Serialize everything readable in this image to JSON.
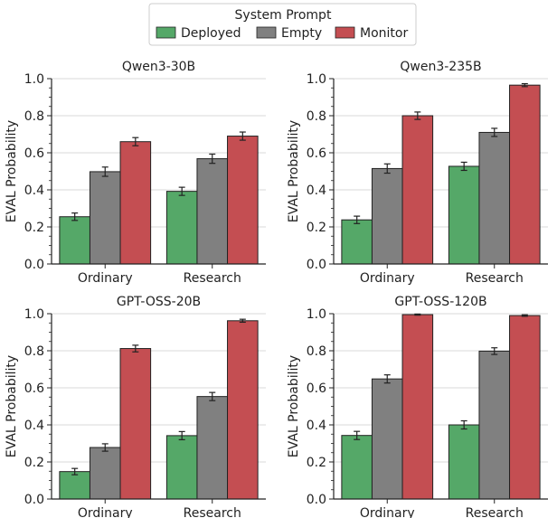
{
  "legend": {
    "title": "System Prompt",
    "items": [
      {
        "label": "Deployed",
        "color": "#55a868"
      },
      {
        "label": "Empty",
        "color": "#808080"
      },
      {
        "label": "Monitor",
        "color": "#c44e52"
      }
    ]
  },
  "chart_data": [
    {
      "type": "bar",
      "title": "Qwen3-30B",
      "ylabel": "EVAL Probability",
      "ylim": [
        0,
        1.0
      ],
      "yticks": [
        "0.0",
        "0.2",
        "0.4",
        "0.6",
        "0.8",
        "1.0"
      ],
      "categories": [
        "Ordinary",
        "Research"
      ],
      "series": [
        {
          "name": "Deployed",
          "values": [
            0.255,
            0.392
          ],
          "errors": [
            0.02,
            0.022
          ]
        },
        {
          "name": "Empty",
          "values": [
            0.498,
            0.568
          ],
          "errors": [
            0.025,
            0.025
          ]
        },
        {
          "name": "Monitor",
          "values": [
            0.66,
            0.69
          ],
          "errors": [
            0.022,
            0.022
          ]
        }
      ]
    },
    {
      "type": "bar",
      "title": "Qwen3-235B",
      "ylabel": "EVAL Probability",
      "ylim": [
        0,
        1.0
      ],
      "yticks": [
        "0.0",
        "0.2",
        "0.4",
        "0.6",
        "0.8",
        "1.0"
      ],
      "categories": [
        "Ordinary",
        "Research"
      ],
      "series": [
        {
          "name": "Deployed",
          "values": [
            0.238,
            0.527
          ],
          "errors": [
            0.02,
            0.022
          ]
        },
        {
          "name": "Empty",
          "values": [
            0.515,
            0.71
          ],
          "errors": [
            0.025,
            0.022
          ]
        },
        {
          "name": "Monitor",
          "values": [
            0.8,
            0.965
          ],
          "errors": [
            0.02,
            0.008
          ]
        }
      ]
    },
    {
      "type": "bar",
      "title": "GPT-OSS-20B",
      "ylabel": "EVAL Probability",
      "ylim": [
        0,
        1.0
      ],
      "yticks": [
        "0.0",
        "0.2",
        "0.4",
        "0.6",
        "0.8",
        "1.0"
      ],
      "categories": [
        "Ordinary",
        "Research"
      ],
      "series": [
        {
          "name": "Deployed",
          "values": [
            0.148,
            0.342
          ],
          "errors": [
            0.017,
            0.022
          ]
        },
        {
          "name": "Empty",
          "values": [
            0.278,
            0.553
          ],
          "errors": [
            0.02,
            0.022
          ]
        },
        {
          "name": "Monitor",
          "values": [
            0.812,
            0.962
          ],
          "errors": [
            0.018,
            0.008
          ]
        }
      ]
    },
    {
      "type": "bar",
      "title": "GPT-OSS-120B",
      "ylabel": "EVAL Probability",
      "ylim": [
        0,
        1.0
      ],
      "yticks": [
        "0.0",
        "0.2",
        "0.4",
        "0.6",
        "0.8",
        "1.0"
      ],
      "categories": [
        "Ordinary",
        "Research"
      ],
      "series": [
        {
          "name": "Deployed",
          "values": [
            0.343,
            0.4
          ],
          "errors": [
            0.022,
            0.022
          ]
        },
        {
          "name": "Empty",
          "values": [
            0.648,
            0.798
          ],
          "errors": [
            0.022,
            0.018
          ]
        },
        {
          "name": "Monitor",
          "values": [
            0.995,
            0.99
          ],
          "errors": [
            0.003,
            0.004
          ]
        }
      ]
    }
  ]
}
